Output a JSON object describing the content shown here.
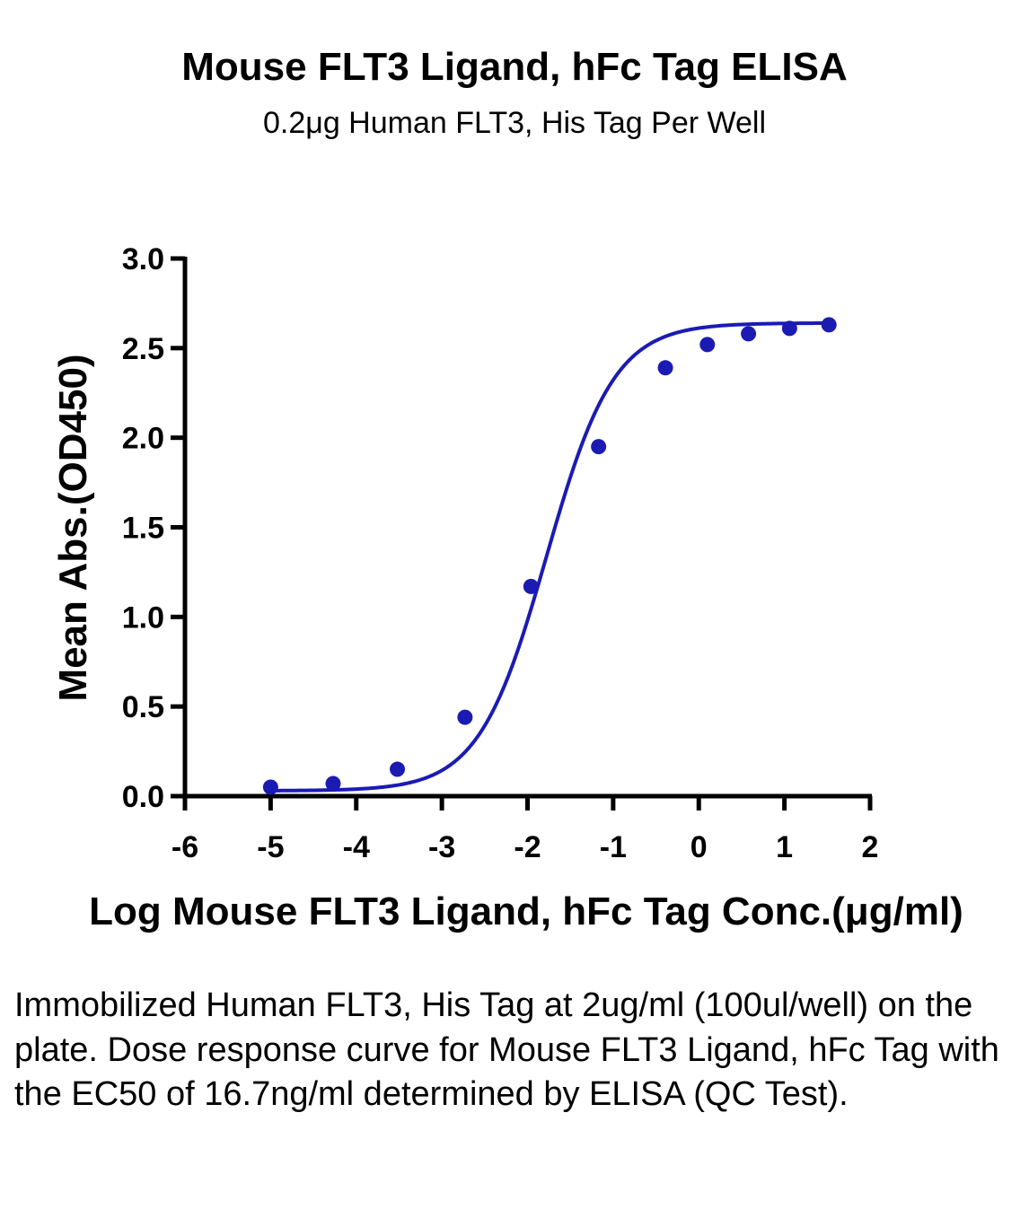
{
  "chart_data": {
    "type": "scatter",
    "title": "Mouse FLT3 Ligand, hFc Tag ELISA",
    "subtitle": "0.2μg Human FLT3, His Tag Per Well",
    "xlabel": "Log Mouse FLT3 Ligand, hFc Tag Conc.(μg/ml)",
    "ylabel": "Mean Abs.(OD450)",
    "xlim": [
      -6,
      2
    ],
    "ylim": [
      0,
      3.0
    ],
    "xticks": [
      "-6",
      "-5",
      "-4",
      "-3",
      "-2",
      "-1",
      "0",
      "1",
      "2"
    ],
    "yticks": [
      "0.0",
      "0.5",
      "1.0",
      "1.5",
      "2.0",
      "2.5",
      "3.0"
    ],
    "grid": false,
    "color": "#1b1bb4",
    "series": [
      {
        "points": [
          {
            "x": -5.0,
            "y": 0.05
          },
          {
            "x": -4.27,
            "y": 0.07
          },
          {
            "x": -3.52,
            "y": 0.15
          },
          {
            "x": -2.73,
            "y": 0.44
          },
          {
            "x": -1.96,
            "y": 1.17
          },
          {
            "x": -1.17,
            "y": 1.95
          },
          {
            "x": -0.39,
            "y": 2.39
          },
          {
            "x": 0.1,
            "y": 2.52
          },
          {
            "x": 0.58,
            "y": 2.58
          },
          {
            "x": 1.06,
            "y": 2.61
          },
          {
            "x": 1.52,
            "y": 2.63
          }
        ]
      }
    ],
    "fit_curve": {
      "model": "4PL",
      "bottom": 0.03,
      "top": 2.64,
      "log_ec50": -1.78,
      "hill": 1.1,
      "x_range": [
        -5.0,
        1.52
      ]
    }
  },
  "caption": "Immobilized Human FLT3, His Tag at 2ug/ml (100ul/well) on the plate. Dose response curve for Mouse FLT3 Ligand, hFc Tag with the EC50 of 16.7ng/ml determined by ELISA (QC Test)."
}
